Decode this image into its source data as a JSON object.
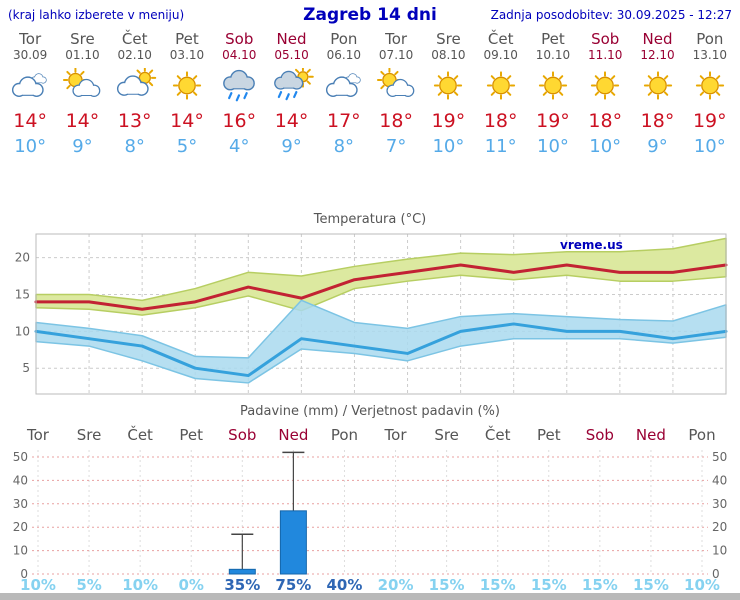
{
  "header": {
    "hint": "(kraj lahko izberete v meniju)",
    "title": "Zagreb 14 dni",
    "updated": "Zadnja posodobitev: 30.09.2025 - 12:27"
  },
  "days": [
    {
      "name": "Tor",
      "date": "30.09",
      "weekend": false,
      "icon": "cloudy",
      "tmax_label": "14°",
      "tmin_label": "10°"
    },
    {
      "name": "Sre",
      "date": "01.10",
      "weekend": false,
      "icon": "partly-cloudy",
      "tmax_label": "14°",
      "tmin_label": "9°"
    },
    {
      "name": "Čet",
      "date": "02.10",
      "weekend": false,
      "icon": "mostly-cloudy",
      "tmax_label": "13°",
      "tmin_label": "8°"
    },
    {
      "name": "Pet",
      "date": "03.10",
      "weekend": false,
      "icon": "sunny",
      "tmax_label": "14°",
      "tmin_label": "5°"
    },
    {
      "name": "Sob",
      "date": "04.10",
      "weekend": true,
      "icon": "rain",
      "tmax_label": "16°",
      "tmin_label": "4°"
    },
    {
      "name": "Ned",
      "date": "05.10",
      "weekend": true,
      "icon": "rain-sun",
      "tmax_label": "14°",
      "tmin_label": "9°"
    },
    {
      "name": "Pon",
      "date": "06.10",
      "weekend": false,
      "icon": "cloudy",
      "tmax_label": "17°",
      "tmin_label": "8°"
    },
    {
      "name": "Tor",
      "date": "07.10",
      "weekend": false,
      "icon": "partly-cloudy",
      "tmax_label": "18°",
      "tmin_label": "7°"
    },
    {
      "name": "Sre",
      "date": "08.10",
      "weekend": false,
      "icon": "sunny",
      "tmax_label": "19°",
      "tmin_label": "10°"
    },
    {
      "name": "Čet",
      "date": "09.10",
      "weekend": false,
      "icon": "sunny",
      "tmax_label": "18°",
      "tmin_label": "11°"
    },
    {
      "name": "Pet",
      "date": "10.10",
      "weekend": false,
      "icon": "sunny",
      "tmax_label": "19°",
      "tmin_label": "10°"
    },
    {
      "name": "Sob",
      "date": "11.10",
      "weekend": true,
      "icon": "sunny",
      "tmax_label": "18°",
      "tmin_label": "10°"
    },
    {
      "name": "Ned",
      "date": "12.10",
      "weekend": true,
      "icon": "sunny",
      "tmax_label": "18°",
      "tmin_label": "9°"
    },
    {
      "name": "Pon",
      "date": "13.10",
      "weekend": false,
      "icon": "sunny",
      "tmax_label": "19°",
      "tmin_label": "10°"
    }
  ],
  "charts": {
    "temp_title": "Temperatura (°C)",
    "precip_title": "Padavine (mm) / Verjetnost padavin (%)",
    "watermark": "vreme.us"
  },
  "chart_data": [
    {
      "type": "line",
      "title": "Temperatura (°C)",
      "x_labels": [
        "Tor 30.09",
        "Sre 01.10",
        "Čet 02.10",
        "Pet 03.10",
        "Sob 04.10",
        "Ned 05.10",
        "Pon 06.10",
        "Tor 07.10",
        "Sre 08.10",
        "Čet 09.10",
        "Pet 10.10",
        "Sob 11.10",
        "Ned 12.10",
        "Pon 13.10"
      ],
      "ylim": [
        1.5,
        23.2
      ],
      "yticks": [
        5,
        10,
        15,
        20
      ],
      "grid": true,
      "legend_position": "none",
      "series": [
        {
          "name": "maks. temperatura",
          "color": "#C22233",
          "values": [
            14,
            14,
            13,
            14,
            16,
            14.5,
            17,
            18,
            19,
            18,
            19,
            18,
            18,
            19
          ]
        },
        {
          "name": "min. temperatura",
          "color": "#35A1DC",
          "values": [
            10,
            9,
            8,
            5,
            4,
            9,
            8,
            7,
            10,
            11,
            10,
            10,
            9,
            10
          ]
        }
      ],
      "bands": [
        {
          "name": "max-temperature-range",
          "fill": "#DCE9A0",
          "stroke": "#B7CE62",
          "opacity": 1,
          "upper": [
            15,
            15,
            14.2,
            15.8,
            18,
            17.5,
            18.8,
            19.8,
            20.6,
            20.4,
            20.8,
            20.8,
            21.2,
            22.6
          ],
          "lower": [
            13.2,
            13,
            12.2,
            13.2,
            14.8,
            12.8,
            15.8,
            16.8,
            17.6,
            17,
            17.6,
            16.8,
            16.8,
            17.4
          ]
        },
        {
          "name": "min-temperature-range",
          "fill": "#A9D9EF",
          "stroke": "#7CC4E4",
          "opacity": 0.85,
          "upper": [
            11.2,
            10.4,
            9.4,
            6.6,
            6.4,
            14.2,
            11.2,
            10.4,
            12,
            12.4,
            12,
            11.6,
            11.4,
            13.6
          ],
          "lower": [
            8.6,
            8,
            6,
            3.6,
            3,
            7.6,
            7,
            6,
            8,
            9,
            9,
            9,
            8.4,
            9.2
          ]
        }
      ]
    },
    {
      "type": "bar",
      "title": "Padavine (mm) / Verjetnost padavin (%)",
      "categories": [
        "Tor",
        "Sre",
        "Čet",
        "Pet",
        "Sob",
        "Ned",
        "Pon",
        "Tor",
        "Sre",
        "Čet",
        "Pet",
        "Sob",
        "Ned",
        "Pon"
      ],
      "weekend": [
        false,
        false,
        false,
        false,
        true,
        true,
        false,
        false,
        false,
        false,
        false,
        true,
        true,
        false
      ],
      "precip_mm": [
        0,
        0,
        0,
        0,
        2,
        27,
        0,
        0,
        0,
        0,
        0,
        0,
        0,
        0
      ],
      "precip_mm_max": [
        0,
        0,
        0,
        0,
        17,
        52,
        0,
        0,
        0,
        0,
        0,
        0,
        0,
        0
      ],
      "probability_pct": [
        10,
        5,
        10,
        0,
        35,
        75,
        40,
        20,
        15,
        15,
        15,
        15,
        15,
        10
      ],
      "ylim": [
        0,
        53
      ],
      "yticks": [
        0,
        10,
        20,
        30,
        40,
        50
      ],
      "legend_position": "none"
    }
  ],
  "colors": {
    "header_text": "#0000BB",
    "weekday": "#555555",
    "weekend": "#990033",
    "tmax": "#CC1122",
    "tmin": "#55AAE8",
    "prob_low": "#86D2F0",
    "prob_high": "#2E66B4",
    "bar_fill": "#2188DD",
    "bar_stroke": "#1566AA",
    "grid": "#CCCCCC",
    "precip_grid": "#E8A0A0",
    "axis_text": "#666666",
    "title_text": "#555555",
    "sun_fill": "#FFD832",
    "sun_stroke": "#D89000",
    "sun_ray": "#E8A800",
    "cloud_light": "#FFFFFF",
    "cloud_dark": "#C9D6E2",
    "cloud_stroke": "#4A7FB5",
    "rain": "#2288EE",
    "whisker": "#444444",
    "bottom_bar": "#B9B9B9"
  }
}
